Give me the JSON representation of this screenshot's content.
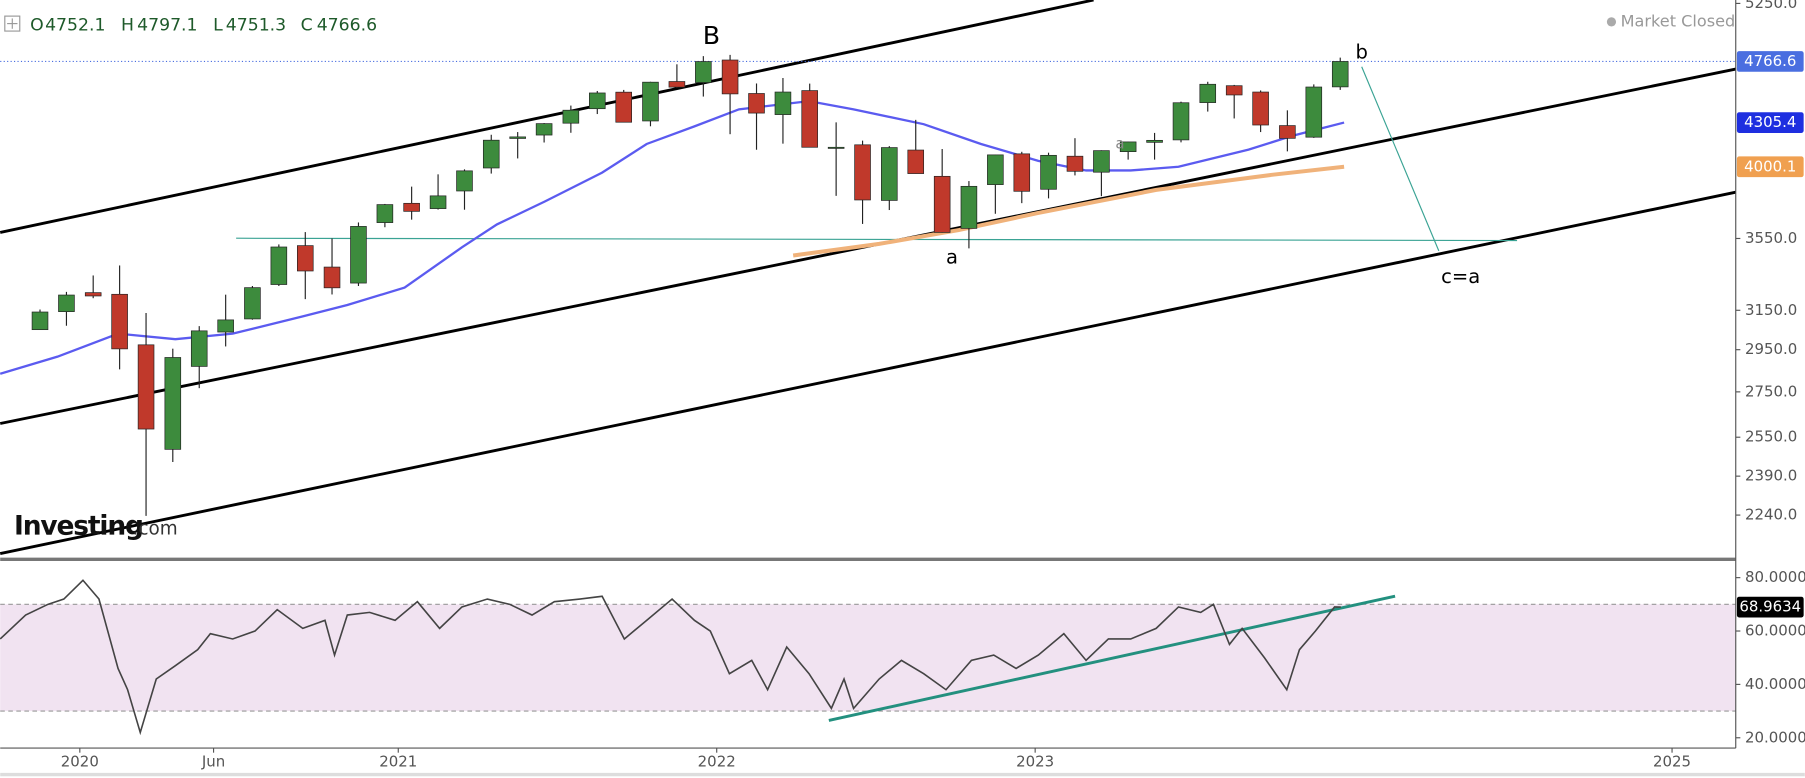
{
  "chart_data": {
    "type": "candlestick",
    "header": {
      "labels": [
        "O",
        "H",
        "L",
        "C"
      ],
      "values": [
        4752.1,
        4797.1,
        4751.3,
        4766.6
      ],
      "color": "#1e5a2a"
    },
    "status": "Market Closed",
    "brand": "Investing",
    "brand_suffix": ".com",
    "annotations": [
      "B",
      "a",
      "b",
      "c=a",
      "a"
    ],
    "x": [
      2019.875,
      2019.958,
      2020.042,
      2020.125,
      2020.208,
      2020.292,
      2020.375,
      2020.458,
      2020.542,
      2020.625,
      2020.708,
      2020.792,
      2020.875,
      2020.958,
      2021.042,
      2021.125,
      2021.208,
      2021.292,
      2021.375,
      2021.458,
      2021.542,
      2021.625,
      2021.708,
      2021.792,
      2021.875,
      2021.958,
      2022.042,
      2022.125,
      2022.208,
      2022.292,
      2022.375,
      2022.458,
      2022.542,
      2022.625,
      2022.708,
      2022.792,
      2022.875,
      2022.958,
      2023.042,
      2023.125,
      2023.208,
      2023.292,
      2023.375,
      2023.458,
      2023.542,
      2023.625,
      2023.708,
      2023.792,
      2023.875,
      2023.958
    ],
    "open": [
      3050,
      3143,
      3244,
      3235,
      2974,
      2499,
      2869,
      3038,
      3105,
      3288,
      3508,
      3385,
      3296,
      3645,
      3764,
      3731,
      3842,
      3992,
      4193,
      4217,
      4301,
      4406,
      4529,
      4317,
      4610,
      4602,
      4778,
      4519,
      4363,
      4541,
      4131,
      4149,
      3782,
      4113,
      3937,
      3610,
      3883,
      4087,
      3853,
      4071,
      3964,
      4102,
      4166,
      4183,
      4451,
      4578,
      4530,
      4284,
      4202,
      4569
    ],
    "high": [
      3154,
      3248,
      3338,
      3394,
      3136,
      2955,
      3068,
      3233,
      3280,
      3515,
      3588,
      3550,
      3646,
      3760,
      3870,
      3950,
      3983,
      4219,
      4238,
      4302,
      4429,
      4538,
      4546,
      4608,
      4744,
      4809,
      4819,
      4595,
      4637,
      4594,
      4307,
      4178,
      4140,
      4325,
      4120,
      3906,
      4081,
      4101,
      4095,
      4195,
      4111,
      4170,
      4232,
      4458,
      4608,
      4584,
      4542,
      4394,
      4588,
      4797.1
    ],
    "low": [
      3050,
      3070,
      3214,
      2855,
      2237,
      2447,
      2767,
      2966,
      3101,
      3280,
      3209,
      3234,
      3280,
      3617,
      3663,
      3725,
      3724,
      3955,
      4056,
      4165,
      4233,
      4367,
      4306,
      4279,
      4560,
      4496,
      4223,
      4115,
      4157,
      4132,
      3811,
      3637,
      3722,
      3955,
      3585,
      3492,
      3699,
      3765,
      3795,
      3943,
      3809,
      4048,
      4048,
      4166,
      4385,
      4335,
      4238,
      4104,
      4197,
      4546
    ],
    "close": [
      3141,
      3231,
      3226,
      2954,
      2585,
      2912,
      3044,
      3100,
      3271,
      3500,
      3363,
      3270,
      3622,
      3756,
      3714,
      3811,
      3973,
      4181,
      4204,
      4298,
      4395,
      4523,
      4308,
      4605,
      4567,
      4766,
      4516,
      4374,
      4530,
      4132,
      4132,
      3785,
      4130,
      3955,
      3586,
      3872,
      4080,
      3840,
      4077,
      3970,
      4109,
      4169,
      4180,
      4450,
      4589,
      4508,
      4288,
      4194,
      4568,
      4766.6
    ],
    "up_color": "#3d8b3d",
    "down_color": "#c0392b",
    "last_price_color": "#4a6ee0",
    "overlays": [
      {
        "color": "#5b5bf0",
        "x": [
          2019.75,
          2019.93,
          2020.12,
          2020.3,
          2020.48,
          2020.7,
          2020.84,
          2021.02,
          2021.2,
          2021.31,
          2021.46,
          2021.64,
          2021.78,
          2021.93,
          2022.07,
          2022.29,
          2022.43,
          2022.65,
          2022.83,
          2023.01,
          2023.16,
          2023.3,
          2023.45,
          2023.67,
          2023.81,
          2023.97
        ],
        "values": [
          2834,
          2916,
          3030,
          3002,
          3030,
          3118,
          3178,
          3271,
          3498,
          3634,
          3775,
          3961,
          4155,
          4278,
          4401,
          4462,
          4401,
          4294,
          4155,
          4039,
          3976,
          3976,
          4000,
          4116,
          4213,
          4305.4
        ],
        "label_color": "#1e2fe0"
      },
      {
        "color": "#f0b27a",
        "x": [
          2022.24,
          2022.51,
          2022.76,
          2023.01,
          2023.38,
          2023.74,
          2023.97
        ],
        "values": [
          3451,
          3518,
          3600,
          3704,
          3849,
          3946,
          4000.1
        ],
        "label_color": "#f0a050"
      }
    ],
    "yscale": "log",
    "ylim": [
      2105,
      5280
    ],
    "yticks": [
      {
        "value": 5250,
        "label": "5250.0"
      },
      {
        "value": 3550,
        "label": "3550.0"
      },
      {
        "value": 3150,
        "label": "3150.0"
      },
      {
        "value": 2950,
        "label": "2950.0"
      },
      {
        "value": 2750,
        "label": "2750.0"
      },
      {
        "value": 2550,
        "label": "2550.0"
      },
      {
        "value": 2390,
        "label": "2390.0"
      },
      {
        "value": 2240,
        "label": "2240.0"
      }
    ],
    "xlim": [
      2019.75,
      2025.2
    ],
    "xticks": [
      2020,
      {
        "value": 2020.42,
        "label": "Jun"
      },
      2021,
      2022,
      2023,
      2025
    ],
    "grid": false,
    "rsi": {
      "type": "line",
      "color": "#444444",
      "band": [
        30,
        70
      ],
      "band_color": "#f1e3f1",
      "ylim": [
        17,
        86
      ],
      "yticks": [
        {
          "value": 80,
          "label": "80.0000"
        },
        {
          "value": 60,
          "label": "60.0000"
        },
        {
          "value": 40,
          "label": "40.0000"
        },
        {
          "value": 20,
          "label": "20.0000"
        }
      ],
      "x": [
        2019.75,
        2019.83,
        2019.9,
        2019.95,
        2020.01,
        2020.06,
        2020.12,
        2020.15,
        2020.19,
        2020.24,
        2020.3,
        2020.37,
        2020.41,
        2020.48,
        2020.55,
        2020.62,
        2020.7,
        2020.77,
        2020.8,
        2020.84,
        2020.91,
        2020.99,
        2021.06,
        2021.13,
        2021.2,
        2021.28,
        2021.35,
        2021.42,
        2021.49,
        2021.57,
        2021.64,
        2021.71,
        2021.78,
        2021.86,
        2021.93,
        2021.98,
        2022.04,
        2022.11,
        2022.16,
        2022.22,
        2022.29,
        2022.36,
        2022.4,
        2022.43,
        2022.51,
        2022.58,
        2022.65,
        2022.72,
        2022.8,
        2022.87,
        2022.94,
        2023.01,
        2023.09,
        2023.16,
        2023.23,
        2023.3,
        2023.38,
        2023.45,
        2023.52,
        2023.56,
        2023.61,
        2023.65,
        2023.72,
        2023.79,
        2023.83,
        2023.88,
        2023.94,
        2023.96
      ],
      "values": [
        57,
        66,
        70,
        72,
        79,
        72,
        46,
        38,
        22,
        42,
        47,
        53,
        59,
        57,
        60,
        68,
        61,
        64,
        51,
        66,
        67,
        64,
        71,
        61,
        69,
        72,
        70,
        66,
        71,
        72,
        73,
        57,
        64,
        72,
        64,
        60,
        44,
        49,
        38,
        54,
        44,
        31,
        42,
        31,
        42,
        49,
        44,
        38,
        49,
        51,
        46,
        51,
        59,
        49,
        57,
        57,
        61,
        69,
        67,
        70,
        55,
        61,
        50,
        38,
        53,
        60,
        69,
        68.9634
      ]
    }
  }
}
